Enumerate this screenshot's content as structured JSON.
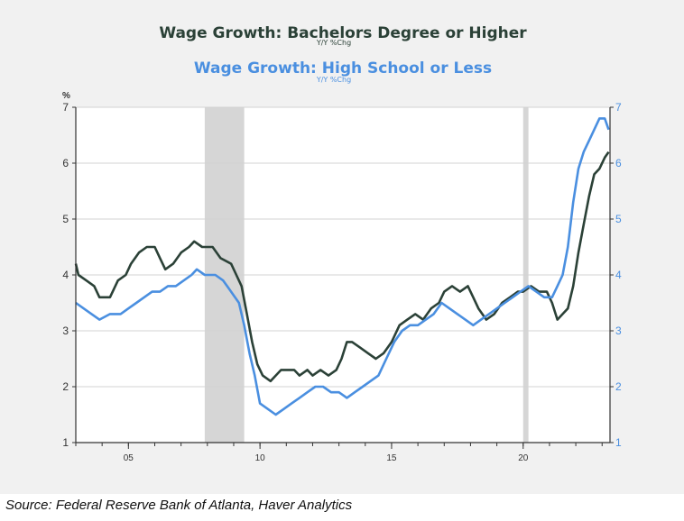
{
  "chart_data": {
    "type": "line",
    "title": "Wage Growth: Bachelors Degree or Higher",
    "title_sub": "Y/Y %Chg",
    "title2": "Wage Growth: High School or Less",
    "title2_sub": "Y/Y %Chg",
    "y_unit": "%",
    "ylim": [
      1,
      7
    ],
    "y_ticks": [
      "1",
      "2",
      "3",
      "4",
      "5",
      "6",
      "7"
    ],
    "y2lim": [
      1,
      7
    ],
    "y2_ticks": [
      "1",
      "2",
      "3",
      "4",
      "5",
      "6",
      "7"
    ],
    "xlim": [
      2003.0,
      2023.3
    ],
    "x_ticks": [
      {
        "value": 2005,
        "label": "05"
      },
      {
        "value": 2010,
        "label": "10"
      },
      {
        "value": 2015,
        "label": "15"
      },
      {
        "value": 2020,
        "label": "20"
      }
    ],
    "grid": true,
    "recession_bands": [
      [
        2007.9,
        2009.4
      ],
      [
        2020.0,
        2020.2
      ]
    ],
    "series": [
      {
        "name": "Wage Growth: Bachelors Degree or Higher",
        "color": "#2b4137",
        "axis": "left",
        "points": [
          [
            2003.0,
            4.2
          ],
          [
            2003.1,
            4.0
          ],
          [
            2003.4,
            3.9
          ],
          [
            2003.7,
            3.8
          ],
          [
            2003.9,
            3.6
          ],
          [
            2004.3,
            3.6
          ],
          [
            2004.6,
            3.9
          ],
          [
            2004.9,
            4.0
          ],
          [
            2005.1,
            4.2
          ],
          [
            2005.4,
            4.4
          ],
          [
            2005.7,
            4.5
          ],
          [
            2006.0,
            4.5
          ],
          [
            2006.2,
            4.3
          ],
          [
            2006.4,
            4.1
          ],
          [
            2006.7,
            4.2
          ],
          [
            2007.0,
            4.4
          ],
          [
            2007.3,
            4.5
          ],
          [
            2007.5,
            4.6
          ],
          [
            2007.8,
            4.5
          ],
          [
            2008.2,
            4.5
          ],
          [
            2008.5,
            4.3
          ],
          [
            2008.9,
            4.2
          ],
          [
            2009.1,
            4.0
          ],
          [
            2009.3,
            3.8
          ],
          [
            2009.5,
            3.3
          ],
          [
            2009.7,
            2.8
          ],
          [
            2009.9,
            2.4
          ],
          [
            2010.1,
            2.2
          ],
          [
            2010.4,
            2.1
          ],
          [
            2010.6,
            2.2
          ],
          [
            2010.8,
            2.3
          ],
          [
            2011.0,
            2.3
          ],
          [
            2011.3,
            2.3
          ],
          [
            2011.5,
            2.2
          ],
          [
            2011.8,
            2.3
          ],
          [
            2012.0,
            2.2
          ],
          [
            2012.3,
            2.3
          ],
          [
            2012.6,
            2.2
          ],
          [
            2012.9,
            2.3
          ],
          [
            2013.1,
            2.5
          ],
          [
            2013.3,
            2.8
          ],
          [
            2013.5,
            2.8
          ],
          [
            2013.8,
            2.7
          ],
          [
            2014.1,
            2.6
          ],
          [
            2014.4,
            2.5
          ],
          [
            2014.7,
            2.6
          ],
          [
            2015.0,
            2.8
          ],
          [
            2015.3,
            3.1
          ],
          [
            2015.6,
            3.2
          ],
          [
            2015.9,
            3.3
          ],
          [
            2016.2,
            3.2
          ],
          [
            2016.5,
            3.4
          ],
          [
            2016.8,
            3.5
          ],
          [
            2017.0,
            3.7
          ],
          [
            2017.3,
            3.8
          ],
          [
            2017.6,
            3.7
          ],
          [
            2017.9,
            3.8
          ],
          [
            2018.1,
            3.6
          ],
          [
            2018.3,
            3.4
          ],
          [
            2018.6,
            3.2
          ],
          [
            2018.9,
            3.3
          ],
          [
            2019.2,
            3.5
          ],
          [
            2019.5,
            3.6
          ],
          [
            2019.8,
            3.7
          ],
          [
            2020.0,
            3.7
          ],
          [
            2020.3,
            3.8
          ],
          [
            2020.6,
            3.7
          ],
          [
            2020.9,
            3.7
          ],
          [
            2021.1,
            3.5
          ],
          [
            2021.3,
            3.2
          ],
          [
            2021.5,
            3.3
          ],
          [
            2021.7,
            3.4
          ],
          [
            2021.9,
            3.8
          ],
          [
            2022.1,
            4.4
          ],
          [
            2022.3,
            4.9
          ],
          [
            2022.5,
            5.4
          ],
          [
            2022.7,
            5.8
          ],
          [
            2022.9,
            5.9
          ],
          [
            2023.1,
            6.1
          ],
          [
            2023.25,
            6.2
          ]
        ]
      },
      {
        "name": "Wage Growth: High School or Less",
        "color": "#4a8fe0",
        "axis": "right",
        "points": [
          [
            2003.0,
            3.5
          ],
          [
            2003.3,
            3.4
          ],
          [
            2003.6,
            3.3
          ],
          [
            2003.9,
            3.2
          ],
          [
            2004.3,
            3.3
          ],
          [
            2004.7,
            3.3
          ],
          [
            2005.0,
            3.4
          ],
          [
            2005.3,
            3.5
          ],
          [
            2005.6,
            3.6
          ],
          [
            2005.9,
            3.7
          ],
          [
            2006.2,
            3.7
          ],
          [
            2006.5,
            3.8
          ],
          [
            2006.8,
            3.8
          ],
          [
            2007.1,
            3.9
          ],
          [
            2007.4,
            4.0
          ],
          [
            2007.6,
            4.1
          ],
          [
            2007.9,
            4.0
          ],
          [
            2008.3,
            4.0
          ],
          [
            2008.6,
            3.9
          ],
          [
            2008.9,
            3.7
          ],
          [
            2009.2,
            3.5
          ],
          [
            2009.4,
            3.1
          ],
          [
            2009.6,
            2.6
          ],
          [
            2009.8,
            2.2
          ],
          [
            2010.0,
            1.7
          ],
          [
            2010.3,
            1.6
          ],
          [
            2010.6,
            1.5
          ],
          [
            2010.9,
            1.6
          ],
          [
            2011.2,
            1.7
          ],
          [
            2011.5,
            1.8
          ],
          [
            2011.8,
            1.9
          ],
          [
            2012.1,
            2.0
          ],
          [
            2012.4,
            2.0
          ],
          [
            2012.7,
            1.9
          ],
          [
            2013.0,
            1.9
          ],
          [
            2013.3,
            1.8
          ],
          [
            2013.6,
            1.9
          ],
          [
            2013.9,
            2.0
          ],
          [
            2014.2,
            2.1
          ],
          [
            2014.5,
            2.2
          ],
          [
            2014.8,
            2.5
          ],
          [
            2015.1,
            2.8
          ],
          [
            2015.4,
            3.0
          ],
          [
            2015.7,
            3.1
          ],
          [
            2016.0,
            3.1
          ],
          [
            2016.3,
            3.2
          ],
          [
            2016.6,
            3.3
          ],
          [
            2016.9,
            3.5
          ],
          [
            2017.2,
            3.4
          ],
          [
            2017.5,
            3.3
          ],
          [
            2017.8,
            3.2
          ],
          [
            2018.1,
            3.1
          ],
          [
            2018.4,
            3.2
          ],
          [
            2018.7,
            3.3
          ],
          [
            2019.0,
            3.4
          ],
          [
            2019.3,
            3.5
          ],
          [
            2019.6,
            3.6
          ],
          [
            2019.9,
            3.7
          ],
          [
            2020.2,
            3.8
          ],
          [
            2020.5,
            3.7
          ],
          [
            2020.8,
            3.6
          ],
          [
            2021.1,
            3.6
          ],
          [
            2021.3,
            3.8
          ],
          [
            2021.5,
            4.0
          ],
          [
            2021.7,
            4.5
          ],
          [
            2021.9,
            5.3
          ],
          [
            2022.1,
            5.9
          ],
          [
            2022.3,
            6.2
          ],
          [
            2022.5,
            6.4
          ],
          [
            2022.7,
            6.6
          ],
          [
            2022.9,
            6.8
          ],
          [
            2023.1,
            6.8
          ],
          [
            2023.25,
            6.6
          ]
        ]
      }
    ],
    "source": "Source: Federal Reserve Bank of Atlanta, Haver Analytics"
  }
}
